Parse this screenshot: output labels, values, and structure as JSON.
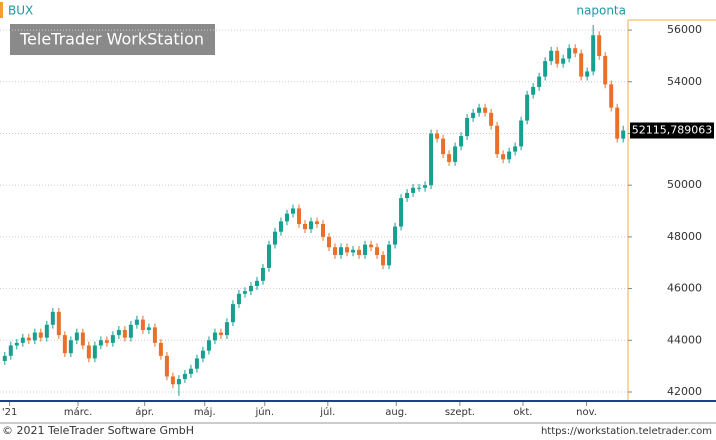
{
  "chart_data": {
    "type": "candlestick",
    "title": "BUX",
    "period": "naponta",
    "watermark": "TeleTrader WorkStation",
    "footer_left": "© 2021 TeleTrader Software GmbH",
    "footer_right": "https://workstation.teletrader.com",
    "last_label": "52115,789063",
    "up_color": "#17a08f",
    "down_color": "#e8702a",
    "grid": true,
    "ylim": [
      41690,
      56390
    ],
    "yticks": [
      42000,
      44000,
      46000,
      48000,
      50000,
      52000,
      54000,
      56000
    ],
    "xlim": [
      -0.8,
      103.8
    ],
    "xticks": [
      {
        "value": 0.8,
        "label": "'21"
      },
      {
        "value": 12.2,
        "label": "márc."
      },
      {
        "value": 23.3,
        "label": "ápr."
      },
      {
        "value": 33.3,
        "label": "máj."
      },
      {
        "value": 43.3,
        "label": "jún."
      },
      {
        "value": 53.8,
        "label": "júl."
      },
      {
        "value": 65.2,
        "label": "aug."
      },
      {
        "value": 75.8,
        "label": "szept."
      },
      {
        "value": 86.3,
        "label": "okt."
      },
      {
        "value": 96.9,
        "label": "nov."
      }
    ],
    "open": [
      43200,
      43400,
      43800,
      43900,
      44100,
      44000,
      44300,
      44100,
      44600,
      45100,
      44200,
      43500,
      44000,
      44300,
      43800,
      43300,
      43800,
      44000,
      43900,
      44200,
      44400,
      44100,
      44600,
      44800,
      44400,
      44500,
      43900,
      43400,
      42600,
      42300,
      42500,
      42700,
      42900,
      43300,
      43600,
      44000,
      44300,
      44200,
      44700,
      45400,
      45800,
      45900,
      46100,
      46300,
      46800,
      47700,
      48200,
      48600,
      48900,
      49100,
      48500,
      48300,
      48600,
      48500,
      48000,
      47600,
      47300,
      47600,
      47400,
      47500,
      47300,
      47700,
      47600,
      47300,
      46900,
      47700,
      48400,
      49500,
      49700,
      49900,
      49900,
      50000,
      52000,
      51800,
      51200,
      50900,
      51500,
      51900,
      52600,
      52800,
      53000,
      52800,
      52300,
      51200,
      51000,
      51300,
      51500,
      52500,
      53500,
      53800,
      54200,
      54800,
      55200,
      54700,
      54900,
      55300,
      55100,
      54200,
      54400,
      55800,
      55000,
      53900,
      53000,
      51800
    ],
    "high": [
      43550,
      43950,
      44050,
      44250,
      44250,
      44450,
      44450,
      44750,
      45250,
      45250,
      44350,
      44150,
      44450,
      44450,
      43950,
      43950,
      44150,
      44150,
      44350,
      44550,
      44550,
      44750,
      44950,
      44950,
      44650,
      44650,
      44050,
      43550,
      42750,
      42650,
      42850,
      43050,
      43450,
      43750,
      44150,
      44450,
      44450,
      44850,
      45550,
      45950,
      46050,
      46250,
      46450,
      46950,
      47850,
      48350,
      48750,
      49050,
      49250,
      49250,
      48650,
      48750,
      48750,
      48650,
      48150,
      47750,
      47750,
      47750,
      47650,
      47650,
      47850,
      47850,
      47750,
      47450,
      47850,
      48550,
      49650,
      49850,
      50050,
      50050,
      50150,
      52150,
      52150,
      51950,
      51350,
      51650,
      52050,
      52750,
      52950,
      53150,
      53150,
      52950,
      52450,
      51350,
      51450,
      51650,
      52650,
      53650,
      53950,
      54350,
      54950,
      55350,
      55350,
      55050,
      55450,
      55450,
      55250,
      54550,
      56200,
      55950,
      55150,
      54050,
      53150,
      52300
    ],
    "low": [
      43050,
      43250,
      43650,
      43750,
      43850,
      43850,
      43950,
      43950,
      44450,
      44050,
      43350,
      43350,
      43850,
      43650,
      43150,
      43150,
      43650,
      43750,
      43750,
      44050,
      43950,
      43950,
      44450,
      44250,
      44250,
      43750,
      43250,
      42450,
      42150,
      41850,
      42350,
      42550,
      42750,
      43150,
      43450,
      43850,
      44050,
      44050,
      44550,
      45250,
      45650,
      45750,
      45950,
      46150,
      46650,
      47550,
      48050,
      48450,
      48750,
      48350,
      48150,
      48150,
      48350,
      47850,
      47450,
      47150,
      47150,
      47250,
      47250,
      47150,
      47150,
      47450,
      47150,
      46750,
      46750,
      47550,
      48250,
      49350,
      49550,
      49750,
      49750,
      49850,
      51650,
      51050,
      50750,
      50750,
      51350,
      51750,
      52450,
      52650,
      52650,
      52150,
      51050,
      50850,
      50850,
      51150,
      51350,
      52350,
      53350,
      53650,
      54050,
      54650,
      54550,
      54550,
      54750,
      54950,
      54050,
      54050,
      54250,
      54850,
      53750,
      52850,
      51650,
      51650
    ],
    "close": [
      43400,
      43800,
      43900,
      44100,
      44000,
      44300,
      44100,
      44600,
      45100,
      44200,
      43500,
      44000,
      44300,
      43800,
      43300,
      43800,
      44000,
      43900,
      44200,
      44400,
      44100,
      44600,
      44800,
      44400,
      44500,
      43900,
      43400,
      42600,
      42300,
      42500,
      42700,
      42900,
      43300,
      43600,
      44000,
      44300,
      44200,
      44700,
      45400,
      45800,
      45900,
      46100,
      46300,
      46800,
      47700,
      48200,
      48600,
      48900,
      49100,
      48500,
      48300,
      48600,
      48500,
      48000,
      47600,
      47300,
      47600,
      47400,
      47500,
      47300,
      47700,
      47600,
      47300,
      46900,
      47700,
      48400,
      49500,
      49700,
      49900,
      49900,
      50000,
      52000,
      51800,
      51200,
      50900,
      51500,
      51900,
      52600,
      52800,
      53000,
      52800,
      52300,
      51200,
      51000,
      51300,
      51500,
      52500,
      53500,
      53800,
      54200,
      54800,
      55200,
      54700,
      54900,
      55300,
      55100,
      54200,
      54400,
      55800,
      55000,
      53900,
      53000,
      51800,
      52115.789063
    ]
  }
}
